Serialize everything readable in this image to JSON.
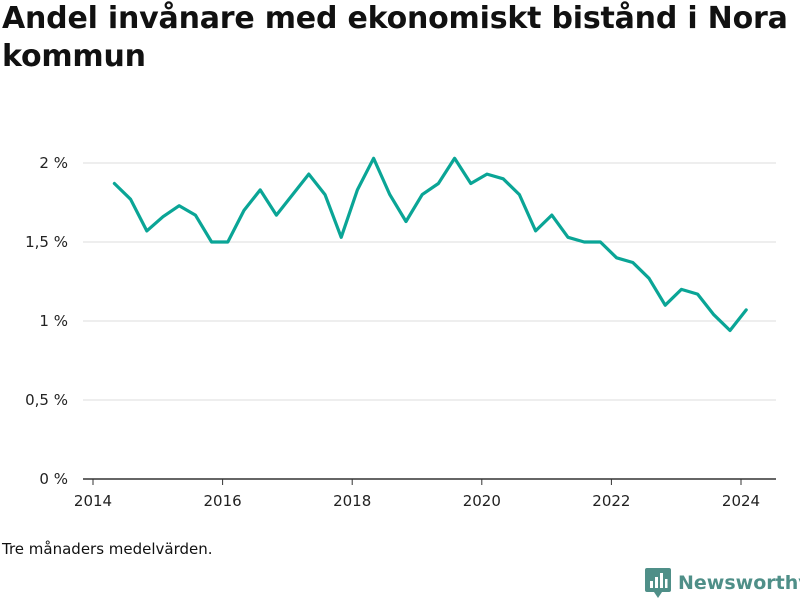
{
  "title": "Andel invånare med ekonomiskt bistånd i Nora kommun",
  "note": "Tre månaders medelvärden.",
  "brand": {
    "name": "Newsworthy",
    "color": "#4f8f88",
    "logo_icon": "bar-chart-bubble-icon"
  },
  "colors": {
    "line": "#0aa596",
    "grid": "#dddddd",
    "axis": "#333333"
  },
  "chart_data": {
    "type": "line",
    "title": "Andel invånare med ekonomiskt bistånd i Nora kommun",
    "xlabel": "",
    "ylabel": "",
    "xlim": [
      2014,
      2024.7
    ],
    "ylim": [
      0,
      2.2
    ],
    "grid": true,
    "legend": "none",
    "x_ticks": [
      2014,
      2016,
      2018,
      2020,
      2022,
      2024
    ],
    "x_tick_labels": [
      "2014",
      "2016",
      "2018",
      "2020",
      "2022",
      "2024"
    ],
    "y_ticks": [
      0,
      0.5,
      1,
      1.5,
      2
    ],
    "y_tick_labels": [
      "0 %",
      "0,5 %",
      "1 %",
      "1,5 %",
      "2 %"
    ],
    "series": [
      {
        "x": [
          2014.33,
          2014.58,
          2014.83,
          2015.08,
          2015.33,
          2015.58,
          2015.83,
          2016.08,
          2016.33,
          2016.58,
          2016.83,
          2017.08,
          2017.33,
          2017.58,
          2017.83,
          2018.08,
          2018.33,
          2018.58,
          2018.83,
          2019.08,
          2019.33,
          2019.58,
          2019.83,
          2020.08,
          2020.33,
          2020.58,
          2020.83,
          2021.08,
          2021.33,
          2021.58,
          2021.83,
          2022.08,
          2022.33,
          2022.58,
          2022.83,
          2023.08,
          2023.33,
          2023.58,
          2023.83,
          2024.08
        ],
        "y": [
          1.87,
          1.77,
          1.57,
          1.66,
          1.73,
          1.67,
          1.5,
          1.5,
          1.7,
          1.83,
          1.67,
          1.8,
          1.93,
          1.8,
          1.53,
          1.83,
          2.03,
          1.8,
          1.63,
          1.8,
          1.87,
          2.03,
          1.87,
          1.93,
          1.9,
          1.8,
          1.57,
          1.67,
          1.53,
          1.5,
          1.5,
          1.4,
          1.37,
          1.27,
          1.1,
          1.2,
          1.17,
          1.04,
          0.94,
          1.07
        ]
      }
    ]
  }
}
